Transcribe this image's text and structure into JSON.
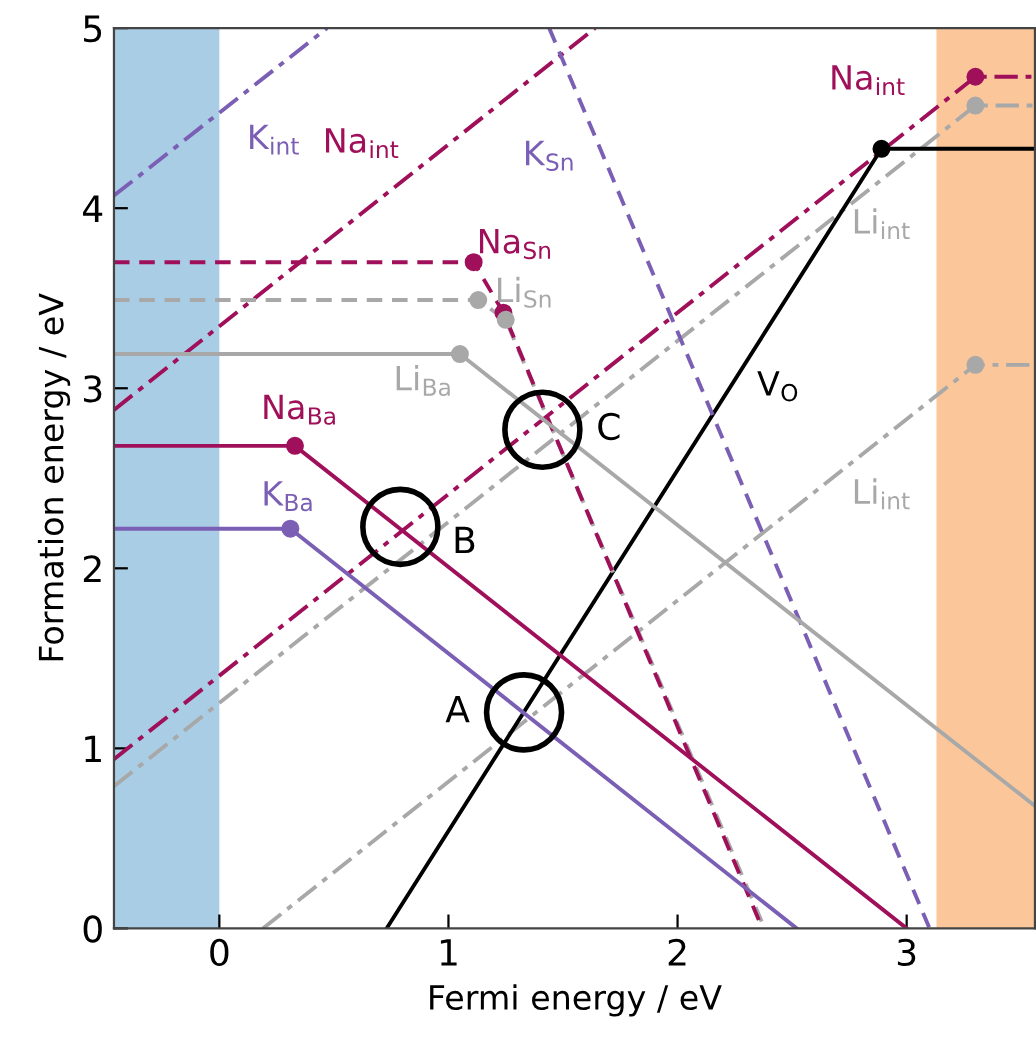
{
  "chart_data": {
    "type": "line",
    "xlabel": "Fermi energy / eV",
    "ylabel": "Formation energy / eV",
    "xlim": [
      -0.46,
      3.56
    ],
    "ylim": [
      0,
      5
    ],
    "xticks": [
      0,
      1,
      2,
      3
    ],
    "yticks": [
      0,
      1,
      2,
      3,
      4,
      5
    ],
    "grid": false,
    "legend": false,
    "series": [
      {
        "name": "K$_{int}$",
        "color": "#7b5fb5",
        "line_style": "dashdot",
        "x": [
          -0.46,
          0.47
        ],
        "values": [
          4.07,
          5.0
        ]
      },
      {
        "name": "Na$_{int}$",
        "color": "#a0105a",
        "line_style": "dashdot",
        "x": [
          -0.46,
          1.64
        ],
        "values": [
          2.88,
          5.0
        ]
      },
      {
        "name": "Na$_{int}$",
        "color": "#a0105a",
        "line_style": "dashdot",
        "x": [
          -0.46,
          3.3,
          3.56
        ],
        "values": [
          0.94,
          4.73,
          4.73
        ]
      },
      {
        "name": "Li$_{int}$",
        "color": "#a8a8a8",
        "line_style": "dashdot",
        "x": [
          -0.46,
          3.3,
          3.56
        ],
        "values": [
          0.79,
          4.57,
          4.57
        ]
      },
      {
        "name": "Li$_{int}$",
        "color": "#a8a8a8",
        "line_style": "dashdot",
        "x": [
          0.19,
          3.3,
          3.56
        ],
        "values": [
          0,
          3.13,
          3.13
        ]
      },
      {
        "name": "V$_{O}$",
        "color": "#000000",
        "line_style": "solid",
        "x": [
          0.73,
          2.89,
          3.56
        ],
        "values": [
          0,
          4.33,
          4.33
        ]
      },
      {
        "name": "K$_{Sn}$",
        "color": "#7b5fb5",
        "line_style": "dashed",
        "x": [
          1.44,
          3.1
        ],
        "values": [
          5.0,
          0
        ]
      },
      {
        "name": "Li$_{Sn}$",
        "color": "#a8a8a8",
        "line_style": "dashed",
        "x": [
          -0.46,
          1.13,
          1.25,
          2.38
        ],
        "values": [
          3.49,
          3.49,
          3.38,
          0
        ]
      },
      {
        "name": "Na$_{Sn}$",
        "color": "#a0105a",
        "line_style": "dashed",
        "x": [
          -0.46,
          1.11,
          1.24,
          2.37
        ],
        "values": [
          3.7,
          3.7,
          3.42,
          0
        ]
      },
      {
        "name": "Li$_{Ba}$",
        "color": "#a8a8a8",
        "line_style": "solid",
        "x": [
          -0.46,
          1.05,
          3.56
        ],
        "values": [
          3.19,
          3.19,
          0.68
        ]
      },
      {
        "name": "Na$_{Ba}$",
        "color": "#a0105a",
        "line_style": "solid",
        "x": [
          -0.46,
          0.33,
          3.0
        ],
        "values": [
          2.68,
          2.68,
          0
        ]
      },
      {
        "name": "K$_{Ba}$",
        "color": "#7b5fb5",
        "line_style": "solid",
        "x": [
          -0.46,
          0.31,
          2.52
        ],
        "values": [
          2.22,
          2.22,
          0
        ]
      },
      {
        "type": "scatter",
        "marker": "circle",
        "color": "#a0105a",
        "x": [
          3.3,
          1.11,
          1.24,
          0.33
        ],
        "values": [
          4.73,
          3.7,
          3.42,
          2.68
        ]
      },
      {
        "type": "scatter",
        "marker": "circle",
        "color": "#a8a8a8",
        "x": [
          3.3,
          3.3,
          1.13,
          1.25,
          1.05
        ],
        "values": [
          4.57,
          3.13,
          3.49,
          3.38,
          3.19
        ]
      },
      {
        "type": "scatter",
        "marker": "circle",
        "color": "#7b5fb5",
        "x": [
          0.31
        ],
        "values": [
          2.22
        ]
      },
      {
        "type": "scatter",
        "marker": "circle",
        "color": "#000000",
        "x": [
          2.89
        ],
        "values": [
          4.33
        ]
      }
    ],
    "bands": [
      {
        "axis": "x",
        "from": -0.46,
        "to": 0,
        "color": "#a9cde4"
      },
      {
        "axis": "x",
        "from": 3.13,
        "to": 3.56,
        "color": "#fbc79a"
      }
    ],
    "annotations": [
      {
        "text": "A",
        "x": 1.33,
        "y": 1.2
      },
      {
        "text": "B",
        "x": 0.79,
        "y": 2.23
      },
      {
        "text": "C",
        "x": 1.41,
        "y": 2.77
      }
    ]
  }
}
